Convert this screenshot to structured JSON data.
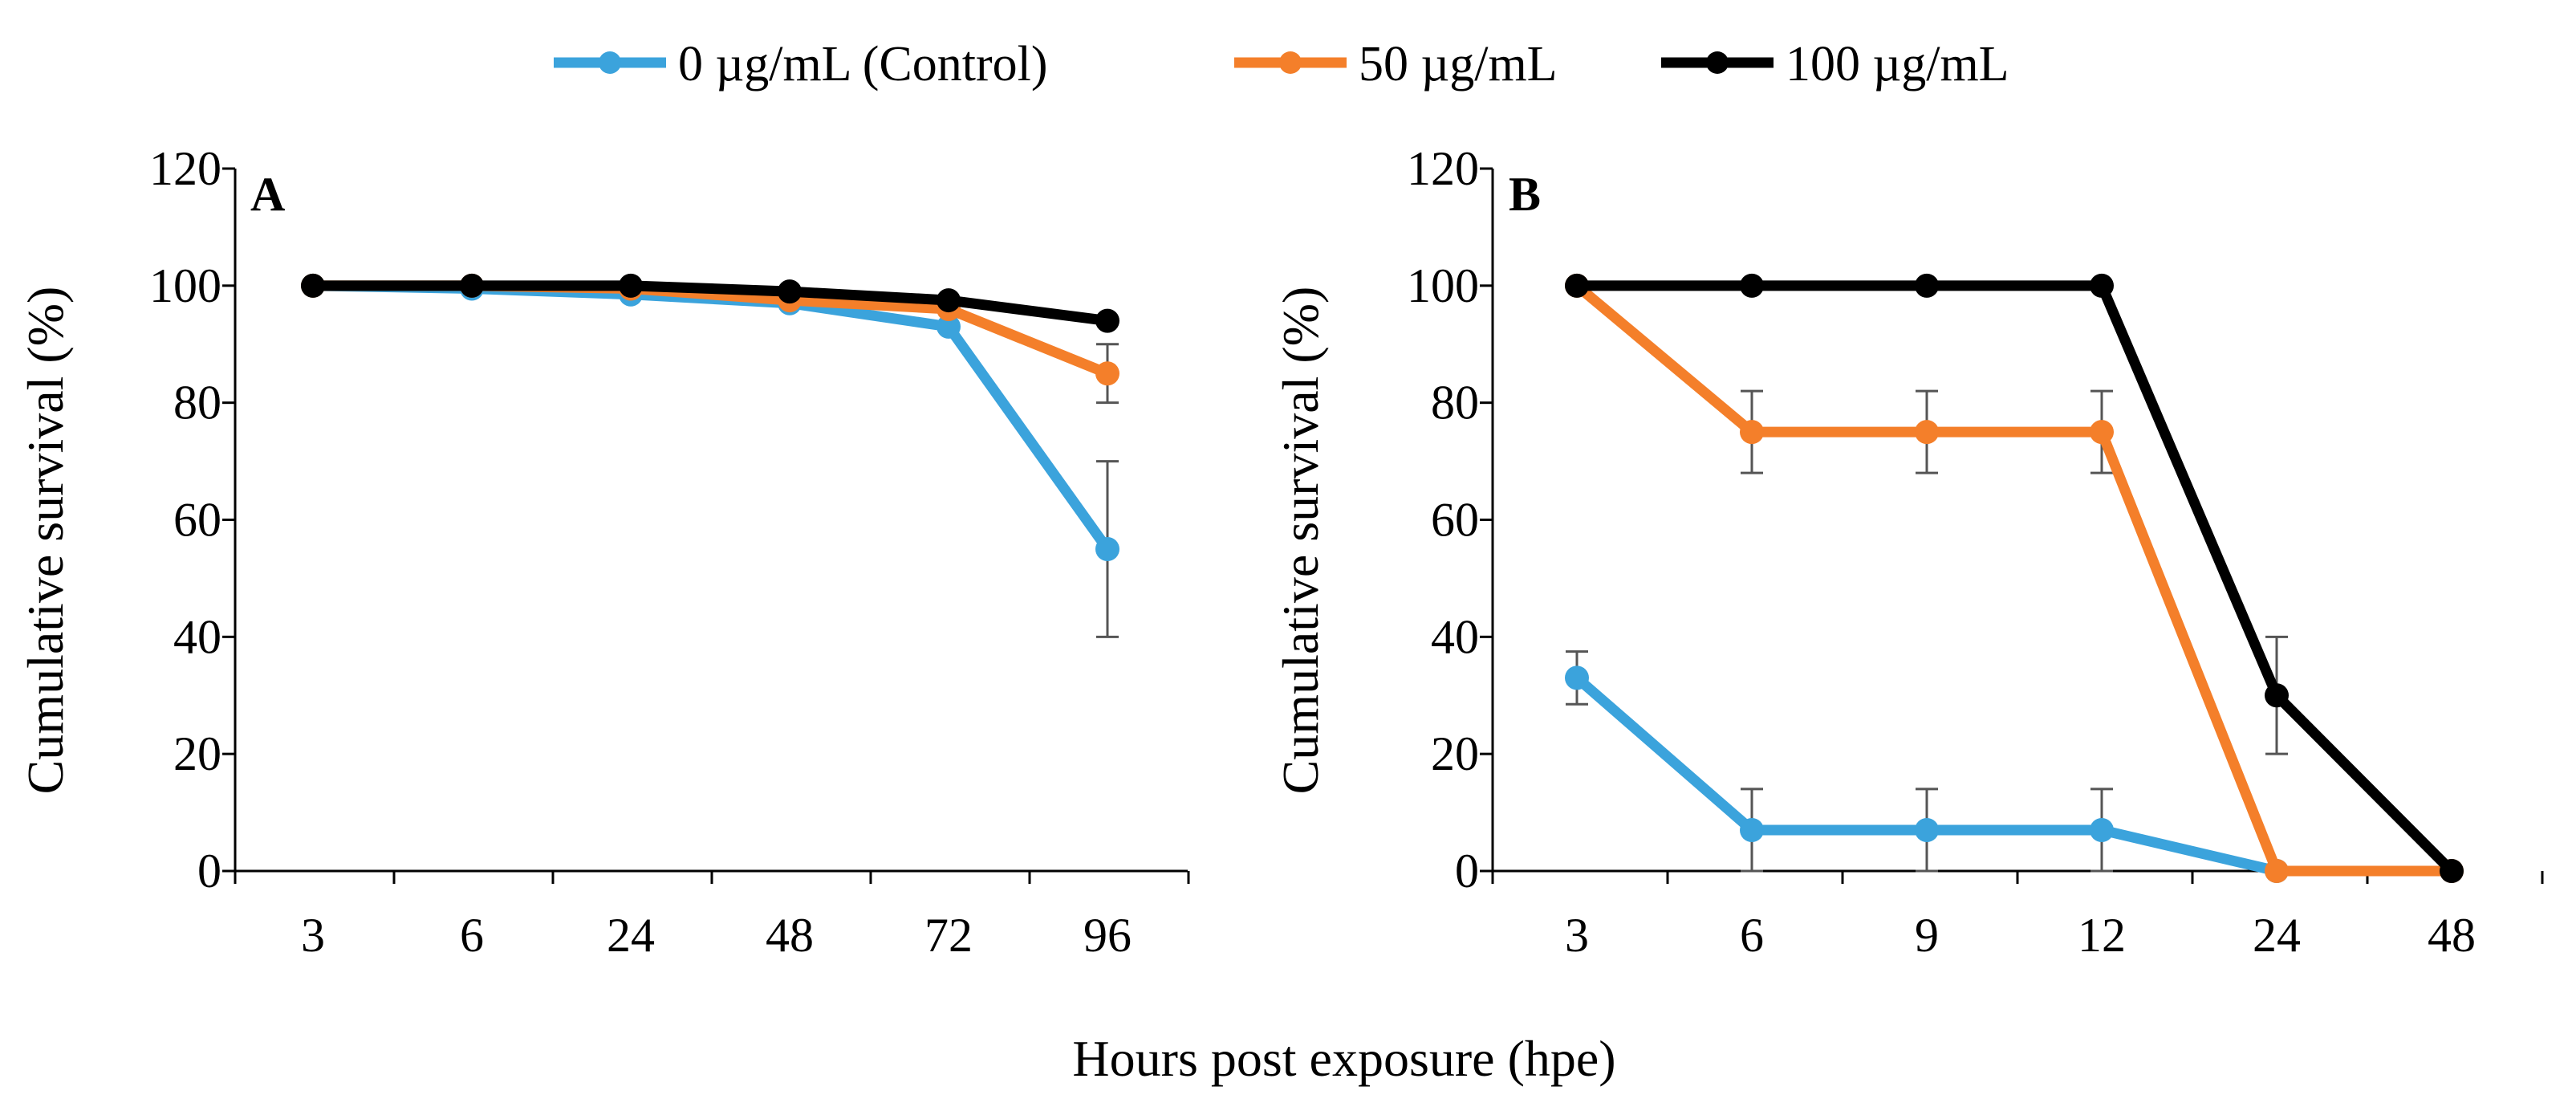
{
  "legend": [
    {
      "label": "0 µg/mL (Control)",
      "color": "#3BA3DC"
    },
    {
      "label": "50 µg/mL",
      "color": "#F47F2A"
    },
    {
      "label": "100 µg/mL",
      "color": "#000000"
    }
  ],
  "xlabel": "Hours post exposure (hpe)",
  "chart_data": [
    {
      "type": "line",
      "panel": "A",
      "categories": [
        "3",
        "6",
        "24",
        "48",
        "72",
        "96"
      ],
      "ylabel": "Cumulative survival (%)",
      "ylim": [
        0,
        120
      ],
      "yticks": [
        0,
        20,
        40,
        60,
        80,
        100,
        120
      ],
      "grid": false,
      "series": [
        {
          "name": "0 µg/mL (Control)",
          "color": "#3BA3DC",
          "values": [
            100,
            99.5,
            98.5,
            97,
            93,
            55
          ],
          "errors": [
            0,
            0,
            0,
            0,
            0,
            15
          ]
        },
        {
          "name": "50 µg/mL",
          "color": "#F47F2A",
          "values": [
            100,
            100,
            99.5,
            97.5,
            96,
            85
          ],
          "errors": [
            0,
            0,
            0,
            0,
            0,
            5
          ]
        },
        {
          "name": "100 µg/mL",
          "color": "#000000",
          "values": [
            100,
            100,
            100,
            99,
            97.5,
            94
          ],
          "errors": [
            0,
            0,
            0,
            0,
            0,
            0
          ]
        }
      ]
    },
    {
      "type": "line",
      "panel": "B",
      "categories": [
        "3",
        "6",
        "9",
        "12",
        "24",
        "48"
      ],
      "ylabel": "Cumulative survival (%)",
      "ylim": [
        0,
        120
      ],
      "yticks": [
        0,
        20,
        40,
        60,
        80,
        100,
        120
      ],
      "grid": false,
      "series": [
        {
          "name": "0 µg/mL (Control)",
          "color": "#3BA3DC",
          "values": [
            33,
            7,
            7,
            7,
            0,
            null
          ],
          "errors": [
            4.5,
            7,
            7,
            7,
            0,
            0
          ]
        },
        {
          "name": "50 µg/mL",
          "color": "#F47F2A",
          "values": [
            100,
            75,
            75,
            75,
            0,
            0
          ],
          "errors": [
            0,
            7,
            7,
            7,
            0,
            0
          ]
        },
        {
          "name": "100 µg/mL",
          "color": "#000000",
          "values": [
            100,
            100,
            100,
            100,
            30,
            0
          ],
          "errors": [
            0,
            0,
            0,
            0,
            10,
            0
          ]
        }
      ]
    }
  ]
}
